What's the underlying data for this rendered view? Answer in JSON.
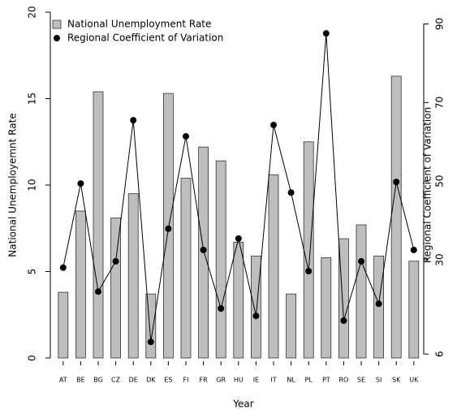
{
  "chart_data": {
    "type": "bar",
    "categories": [
      "AT",
      "BE",
      "BG",
      "CZ",
      "DE",
      "DK",
      "ES",
      "FI",
      "FR",
      "GR",
      "HU",
      "IE",
      "IT",
      "NL",
      "PL",
      "PT",
      "RO",
      "SE",
      "SI",
      "SK",
      "UK"
    ],
    "series": [
      {
        "name": "National Unemployment Rate",
        "type": "bar",
        "color": "#bebebe",
        "values": [
          3.8,
          8.5,
          15.4,
          8.1,
          9.5,
          3.7,
          15.3,
          10.4,
          12.2,
          11.4,
          6.7,
          5.9,
          10.6,
          3.7,
          12.5,
          5.8,
          6.9,
          7.7,
          5.9,
          16.3,
          5.6
        ]
      },
      {
        "name": "Regional Coefficient of Variation",
        "type": "line",
        "axis": "y2",
        "color": "#000000",
        "values": [
          28,
          49.4,
          21.9,
          29.6,
          65.5,
          9.1,
          37.9,
          61.4,
          32.5,
          17.6,
          35.4,
          15.7,
          64.3,
          47.1,
          27.1,
          87.6,
          14.5,
          29.6,
          18.8,
          49.8,
          32.5
        ]
      }
    ],
    "ylim": [
      0,
      20
    ],
    "yticks": [
      0,
      5,
      10,
      15,
      20
    ],
    "y2lim": [
      5,
      93
    ],
    "y2ticks": [
      6,
      30,
      50,
      70,
      90
    ],
    "ylabel": "National Unemployemnt Rate",
    "y2label": "Regional Coefficient of Variation",
    "xlabel": "Year",
    "legend": "top-left"
  }
}
